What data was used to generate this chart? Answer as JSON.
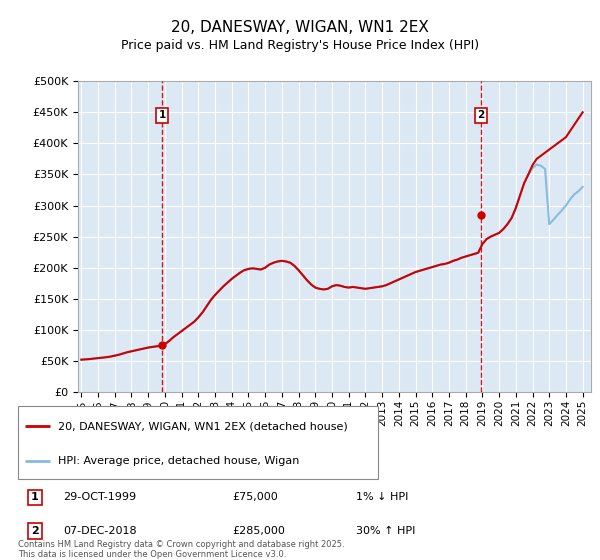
{
  "title": "20, DANESWAY, WIGAN, WN1 2EX",
  "subtitle": "Price paid vs. HM Land Registry's House Price Index (HPI)",
  "title_fontsize": 11,
  "subtitle_fontsize": 9,
  "bg_color": "#dce9f5",
  "ylim": [
    0,
    500000
  ],
  "yticks": [
    0,
    50000,
    100000,
    150000,
    200000,
    250000,
    300000,
    350000,
    400000,
    450000,
    500000
  ],
  "ytick_labels": [
    "£0",
    "£50K",
    "£100K",
    "£150K",
    "£200K",
    "£250K",
    "£300K",
    "£350K",
    "£400K",
    "£450K",
    "£500K"
  ],
  "xlim_start": 1994.8,
  "xlim_end": 2025.5,
  "xticks": [
    1995,
    1996,
    1997,
    1998,
    1999,
    2000,
    2001,
    2002,
    2003,
    2004,
    2005,
    2006,
    2007,
    2008,
    2009,
    2010,
    2011,
    2012,
    2013,
    2014,
    2015,
    2016,
    2017,
    2018,
    2019,
    2020,
    2021,
    2022,
    2023,
    2024,
    2025
  ],
  "sale1_date": 1999.83,
  "sale1_price": 75000,
  "sale2_date": 2018.92,
  "sale2_price": 285000,
  "line1_color": "#cc0000",
  "line2_color": "#88bbdd",
  "sale1_label": "1",
  "sale2_label": "2",
  "legend1": "20, DANESWAY, WIGAN, WN1 2EX (detached house)",
  "legend2": "HPI: Average price, detached house, Wigan",
  "annotation1_date": "29-OCT-1999",
  "annotation1_price": "£75,000",
  "annotation1_hpi": "1% ↓ HPI",
  "annotation2_date": "07-DEC-2018",
  "annotation2_price": "£285,000",
  "annotation2_hpi": "30% ↑ HPI",
  "footer": "Contains HM Land Registry data © Crown copyright and database right 2025.\nThis data is licensed under the Open Government Licence v3.0.",
  "hpi_x": [
    1995.0,
    1995.25,
    1995.5,
    1995.75,
    1996.0,
    1996.25,
    1996.5,
    1996.75,
    1997.0,
    1997.25,
    1997.5,
    1997.75,
    1998.0,
    1998.25,
    1998.5,
    1998.75,
    1999.0,
    1999.25,
    1999.5,
    1999.75,
    2000.0,
    2000.25,
    2000.5,
    2000.75,
    2001.0,
    2001.25,
    2001.5,
    2001.75,
    2002.0,
    2002.25,
    2002.5,
    2002.75,
    2003.0,
    2003.25,
    2003.5,
    2003.75,
    2004.0,
    2004.25,
    2004.5,
    2004.75,
    2005.0,
    2005.25,
    2005.5,
    2005.75,
    2006.0,
    2006.25,
    2006.5,
    2006.75,
    2007.0,
    2007.25,
    2007.5,
    2007.75,
    2008.0,
    2008.25,
    2008.5,
    2008.75,
    2009.0,
    2009.25,
    2009.5,
    2009.75,
    2010.0,
    2010.25,
    2010.5,
    2010.75,
    2011.0,
    2011.25,
    2011.5,
    2011.75,
    2012.0,
    2012.25,
    2012.5,
    2012.75,
    2013.0,
    2013.25,
    2013.5,
    2013.75,
    2014.0,
    2014.25,
    2014.5,
    2014.75,
    2015.0,
    2015.25,
    2015.5,
    2015.75,
    2016.0,
    2016.25,
    2016.5,
    2016.75,
    2017.0,
    2017.25,
    2017.5,
    2017.75,
    2018.0,
    2018.25,
    2018.5,
    2018.75,
    2019.0,
    2019.25,
    2019.5,
    2019.75,
    2020.0,
    2020.25,
    2020.5,
    2020.75,
    2021.0,
    2021.25,
    2021.5,
    2021.75,
    2022.0,
    2022.25,
    2022.5,
    2022.75,
    2023.0,
    2023.25,
    2023.5,
    2023.75,
    2024.0,
    2024.25,
    2024.5,
    2024.75,
    2025.0
  ],
  "hpi_y": [
    52000,
    52500,
    53000,
    53800,
    54500,
    55200,
    56000,
    57000,
    58500,
    60000,
    62000,
    64000,
    65500,
    67000,
    68500,
    70000,
    71500,
    72500,
    73500,
    74000,
    77000,
    82000,
    88000,
    93000,
    98000,
    103000,
    108000,
    113000,
    120000,
    128000,
    138000,
    148000,
    156000,
    163000,
    170000,
    176000,
    182000,
    187000,
    192000,
    196000,
    198000,
    199000,
    198000,
    197000,
    200000,
    205000,
    208000,
    210000,
    211000,
    210000,
    208000,
    203000,
    196000,
    188000,
    180000,
    173000,
    168000,
    166000,
    165000,
    166000,
    170000,
    172000,
    171000,
    169000,
    168000,
    169000,
    168000,
    167000,
    166000,
    167000,
    168000,
    169000,
    170000,
    172000,
    175000,
    178000,
    181000,
    184000,
    187000,
    190000,
    193000,
    195000,
    197000,
    199000,
    201000,
    203000,
    205000,
    206000,
    208000,
    211000,
    213000,
    216000,
    218000,
    220000,
    222000,
    224000,
    238000,
    246000,
    250000,
    253000,
    256000,
    262000,
    270000,
    280000,
    296000,
    316000,
    336000,
    350000,
    360000,
    366000,
    364000,
    359000,
    270000,
    277000,
    285000,
    292000,
    300000,
    310000,
    318000,
    323000,
    330000
  ],
  "red_x": [
    1995.0,
    1995.25,
    1995.5,
    1995.75,
    1996.0,
    1996.25,
    1996.5,
    1996.75,
    1997.0,
    1997.25,
    1997.5,
    1997.75,
    1998.0,
    1998.25,
    1998.5,
    1998.75,
    1999.0,
    1999.25,
    1999.5,
    1999.75,
    2000.0,
    2000.25,
    2000.5,
    2000.75,
    2001.0,
    2001.25,
    2001.5,
    2001.75,
    2002.0,
    2002.25,
    2002.5,
    2002.75,
    2003.0,
    2003.25,
    2003.5,
    2003.75,
    2004.0,
    2004.25,
    2004.5,
    2004.75,
    2005.0,
    2005.25,
    2005.5,
    2005.75,
    2006.0,
    2006.25,
    2006.5,
    2006.75,
    2007.0,
    2007.25,
    2007.5,
    2007.75,
    2008.0,
    2008.25,
    2008.5,
    2008.75,
    2009.0,
    2009.25,
    2009.5,
    2009.75,
    2010.0,
    2010.25,
    2010.5,
    2010.75,
    2011.0,
    2011.25,
    2011.5,
    2011.75,
    2012.0,
    2012.25,
    2012.5,
    2012.75,
    2013.0,
    2013.25,
    2013.5,
    2013.75,
    2014.0,
    2014.25,
    2014.5,
    2014.75,
    2015.0,
    2015.25,
    2015.5,
    2015.75,
    2016.0,
    2016.25,
    2016.5,
    2016.75,
    2017.0,
    2017.25,
    2017.5,
    2017.75,
    2018.0,
    2018.25,
    2018.5,
    2018.75,
    2019.0,
    2019.25,
    2019.5,
    2019.75,
    2020.0,
    2020.25,
    2020.5,
    2020.75,
    2021.0,
    2021.25,
    2021.5,
    2021.75,
    2022.0,
    2022.25,
    2022.5,
    2022.75,
    2023.0,
    2023.25,
    2023.5,
    2023.75,
    2024.0,
    2024.25,
    2024.5,
    2024.75,
    2025.0
  ],
  "red_y": [
    52000,
    52500,
    53000,
    53800,
    54500,
    55200,
    56000,
    57000,
    58500,
    60000,
    62000,
    64000,
    65500,
    67000,
    68500,
    70000,
    71500,
    72500,
    73500,
    74000,
    77000,
    82000,
    88000,
    93000,
    98000,
    103000,
    108000,
    113000,
    120000,
    128000,
    138000,
    148000,
    156000,
    163000,
    170000,
    176000,
    182000,
    187000,
    192000,
    196000,
    198000,
    199000,
    198000,
    197000,
    200000,
    205000,
    208000,
    210000,
    211000,
    210000,
    208000,
    203000,
    196000,
    188000,
    180000,
    173000,
    168000,
    166000,
    165000,
    166000,
    170000,
    172000,
    171000,
    169000,
    168000,
    169000,
    168000,
    167000,
    166000,
    167000,
    168000,
    169000,
    170000,
    172000,
    175000,
    178000,
    181000,
    184000,
    187000,
    190000,
    193000,
    195000,
    197000,
    199000,
    201000,
    203000,
    205000,
    206000,
    208000,
    211000,
    213000,
    216000,
    218000,
    220000,
    222000,
    224000,
    238000,
    246000,
    250000,
    253000,
    256000,
    262000,
    270000,
    280000,
    296000,
    316000,
    336000,
    350000,
    365000,
    375000,
    380000,
    385000,
    390000,
    395000,
    400000,
    405000,
    410000,
    420000,
    430000,
    440000,
    450000
  ]
}
